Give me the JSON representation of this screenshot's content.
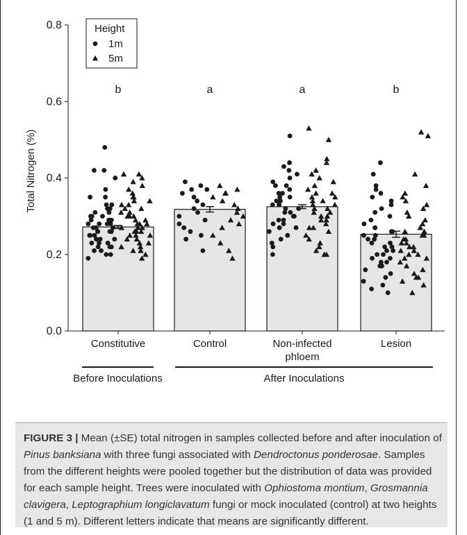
{
  "chart_data": {
    "type": "bar",
    "categories": [
      "Constitutive",
      "Control",
      "Non-infected\nphloem",
      "Lesion"
    ],
    "values": [
      0.272,
      0.318,
      0.325,
      0.253
    ],
    "se": [
      0.004,
      0.007,
      0.005,
      0.008
    ],
    "significance_letters": [
      "b",
      "a",
      "a",
      "b"
    ],
    "xlabel": "",
    "ylabel": "Total Nitrogen (%)",
    "ylim": [
      0.0,
      0.8
    ],
    "yticks": [
      "0.0",
      "0.2",
      "0.4",
      "0.6",
      "0.8"
    ],
    "legend": {
      "title": "Height",
      "placement": "top-left",
      "entries": [
        "1m",
        "5m"
      ]
    },
    "groups": [
      {
        "label": "Before Inoculations",
        "categories": [
          "Constitutive"
        ]
      },
      {
        "label": "After Inoculations",
        "categories": [
          "Control",
          "Non-infected\nphloem",
          "Lesion"
        ]
      }
    ],
    "points": [
      {
        "category": "Constitutive",
        "height": "1m",
        "y": [
          0.48,
          0.42,
          0.42,
          0.4,
          0.37,
          0.35,
          0.35,
          0.33,
          0.33,
          0.32,
          0.32,
          0.31,
          0.31,
          0.3,
          0.3,
          0.3,
          0.29,
          0.29,
          0.29,
          0.28,
          0.28,
          0.28,
          0.28,
          0.27,
          0.27,
          0.27,
          0.27,
          0.26,
          0.26,
          0.26,
          0.26,
          0.25,
          0.25,
          0.25,
          0.24,
          0.24,
          0.24,
          0.23,
          0.23,
          0.23,
          0.22,
          0.22,
          0.22,
          0.21,
          0.21,
          0.2,
          0.2,
          0.19
        ]
      },
      {
        "category": "Constitutive",
        "height": "5m",
        "y": [
          0.41,
          0.41,
          0.4,
          0.39,
          0.38,
          0.37,
          0.36,
          0.35,
          0.35,
          0.34,
          0.34,
          0.33,
          0.33,
          0.32,
          0.32,
          0.31,
          0.31,
          0.3,
          0.3,
          0.3,
          0.29,
          0.29,
          0.28,
          0.28,
          0.28,
          0.27,
          0.27,
          0.27,
          0.26,
          0.26,
          0.26,
          0.25,
          0.25,
          0.25,
          0.24,
          0.24,
          0.23,
          0.23,
          0.22,
          0.22,
          0.21,
          0.21,
          0.2,
          0.19
        ]
      },
      {
        "category": "Control",
        "height": "1m",
        "y": [
          0.39,
          0.38,
          0.37,
          0.37,
          0.36,
          0.35,
          0.34,
          0.33,
          0.32,
          0.31,
          0.3,
          0.29,
          0.28,
          0.27,
          0.26,
          0.25,
          0.24,
          0.21
        ]
      },
      {
        "category": "Control",
        "height": "5m",
        "y": [
          0.38,
          0.37,
          0.36,
          0.36,
          0.35,
          0.34,
          0.33,
          0.32,
          0.31,
          0.3,
          0.29,
          0.28,
          0.27,
          0.25,
          0.23,
          0.21,
          0.19
        ]
      },
      {
        "category": "Non-infected\nphloem",
        "height": "1m",
        "y": [
          0.51,
          0.44,
          0.43,
          0.42,
          0.41,
          0.4,
          0.39,
          0.38,
          0.38,
          0.37,
          0.36,
          0.36,
          0.35,
          0.35,
          0.34,
          0.34,
          0.33,
          0.33,
          0.32,
          0.32,
          0.31,
          0.31,
          0.3,
          0.3,
          0.29,
          0.29,
          0.28,
          0.28,
          0.27,
          0.27,
          0.26,
          0.25,
          0.24,
          0.23,
          0.22,
          0.2
        ]
      },
      {
        "category": "Non-infected\nphloem",
        "height": "5m",
        "y": [
          0.53,
          0.5,
          0.45,
          0.44,
          0.42,
          0.41,
          0.4,
          0.39,
          0.38,
          0.37,
          0.36,
          0.36,
          0.35,
          0.35,
          0.34,
          0.34,
          0.33,
          0.33,
          0.32,
          0.32,
          0.31,
          0.31,
          0.3,
          0.3,
          0.29,
          0.29,
          0.28,
          0.27,
          0.27,
          0.26,
          0.25,
          0.24,
          0.23,
          0.22,
          0.21,
          0.2,
          0.2
        ]
      },
      {
        "category": "Lesion",
        "height": "1m",
        "y": [
          0.44,
          0.41,
          0.38,
          0.37,
          0.36,
          0.35,
          0.34,
          0.33,
          0.32,
          0.31,
          0.3,
          0.29,
          0.28,
          0.27,
          0.27,
          0.26,
          0.26,
          0.25,
          0.25,
          0.24,
          0.24,
          0.23,
          0.23,
          0.22,
          0.22,
          0.21,
          0.21,
          0.2,
          0.2,
          0.19,
          0.19,
          0.18,
          0.18,
          0.17,
          0.17,
          0.16,
          0.15,
          0.14,
          0.13,
          0.12,
          0.11,
          0.1
        ]
      },
      {
        "category": "Lesion",
        "height": "5m",
        "y": [
          0.52,
          0.51,
          0.41,
          0.38,
          0.36,
          0.35,
          0.34,
          0.33,
          0.32,
          0.31,
          0.3,
          0.29,
          0.28,
          0.27,
          0.27,
          0.26,
          0.26,
          0.25,
          0.25,
          0.24,
          0.24,
          0.23,
          0.23,
          0.22,
          0.22,
          0.21,
          0.21,
          0.2,
          0.2,
          0.19,
          0.19,
          0.18,
          0.17,
          0.16,
          0.15,
          0.14,
          0.14,
          0.13,
          0.12,
          0.1
        ]
      }
    ]
  },
  "caption": {
    "label": "FIGURE 3 |",
    "parts": [
      {
        "t": " Mean (±SE) total nitrogen in samples collected before and after inoculation of ",
        "i": false
      },
      {
        "t": "Pinus banksiana",
        "i": true
      },
      {
        "t": " with three fungi associated with ",
        "i": false
      },
      {
        "t": "Dendroctonus ponderosae",
        "i": true
      },
      {
        "t": ". Samples from the different heights were pooled together but the distribution of data was provided for each sample height. Trees were inoculated with ",
        "i": false
      },
      {
        "t": "Ophiostoma montium",
        "i": true
      },
      {
        "t": ", ",
        "i": false
      },
      {
        "t": "Grosmannia clavigera",
        "i": true
      },
      {
        "t": ", ",
        "i": false
      },
      {
        "t": "Leptographium longiclavatum",
        "i": true
      },
      {
        "t": " fungi or mock inoculated (control) at two heights (1 and 5 m). Different letters indicate that means are significantly different.",
        "i": false
      }
    ]
  },
  "colors": {
    "bar_fill": "#e6e6e6",
    "bar_stroke": "#1a1a1a",
    "point": "#1a1a1a",
    "caption_bg": "#e7e7ea"
  }
}
